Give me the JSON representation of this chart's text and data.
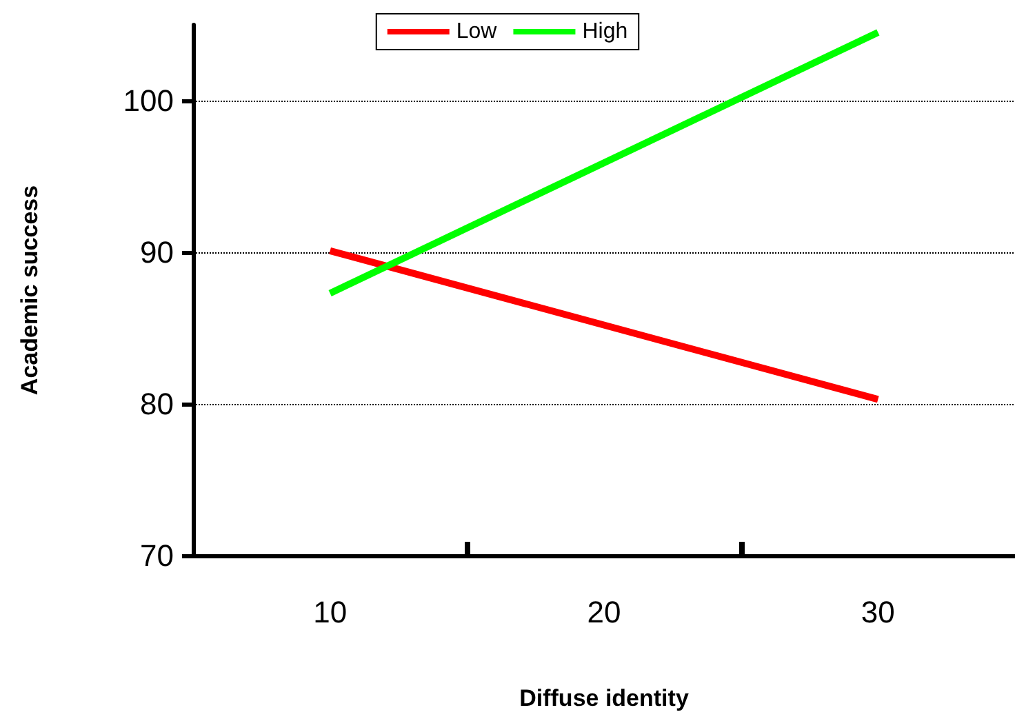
{
  "chart_data": {
    "type": "line",
    "xlabel": "Diffuse identity",
    "ylabel": "Academic success",
    "x": [
      10,
      30
    ],
    "series": [
      {
        "name": "Low",
        "color": "#ff0000",
        "values": [
          90.1,
          80.3
        ]
      },
      {
        "name": "High",
        "color": "#00ff00",
        "values": [
          87.3,
          104.5
        ]
      }
    ],
    "xlim": [
      5,
      35
    ],
    "xticks": [
      10,
      {
        "value": 15,
        "label": null
      },
      20,
      {
        "value": 25,
        "label": null
      },
      30
    ],
    "ylim": [
      70,
      105
    ],
    "yticks": [
      70,
      80,
      90,
      100
    ],
    "grid": "y",
    "legend": "top",
    "marker": "none",
    "line_style": "solid"
  }
}
